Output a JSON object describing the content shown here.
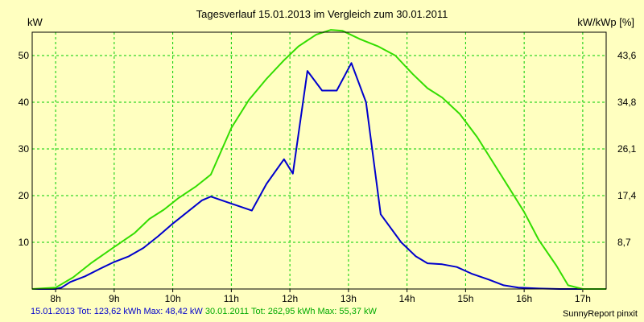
{
  "chart_data": {
    "type": "line",
    "title": "Tagesverlauf 15.01.2013 im Vergleich zum 30.01.2011",
    "ylabel": "kW",
    "y2label": "kW/kWp [%]",
    "x_ticks": [
      "8h",
      "9h",
      "10h",
      "11h",
      "12h",
      "13h",
      "14h",
      "15h",
      "16h",
      "17h"
    ],
    "y_ticks": [
      "10",
      "20",
      "30",
      "40",
      "50"
    ],
    "y2_ticks": [
      "8,7",
      "17,4",
      "26,1",
      "34,8",
      "43,6"
    ],
    "ylim": [
      0,
      55
    ],
    "xlim": [
      7.6,
      17.4
    ],
    "grid": true,
    "series": [
      {
        "name": "15.01.2013",
        "color": "#0000cc",
        "x": [
          7.6,
          8.0,
          8.1,
          8.25,
          8.5,
          8.75,
          9.0,
          9.25,
          9.5,
          9.75,
          10.0,
          10.25,
          10.5,
          10.65,
          11.0,
          11.35,
          11.6,
          11.9,
          12.05,
          12.3,
          12.55,
          12.8,
          13.05,
          13.3,
          13.55,
          13.9,
          14.15,
          14.35,
          14.6,
          14.85,
          15.1,
          15.4,
          15.65,
          15.9,
          16.25,
          16.6,
          17.0,
          17.4
        ],
        "values": [
          0,
          0,
          0.3,
          1.5,
          2.7,
          4.3,
          5.8,
          7.0,
          8.8,
          11.3,
          14.0,
          16.5,
          19.0,
          19.8,
          18.3,
          16.8,
          22.5,
          27.8,
          24.7,
          46.7,
          42.5,
          42.5,
          48.4,
          40.0,
          16.0,
          10.0,
          7.0,
          5.5,
          5.3,
          4.7,
          3.3,
          2.0,
          0.8,
          0.3,
          0.1,
          0,
          0,
          0
        ]
      },
      {
        "name": "30.01.2011",
        "color": "#33dd00",
        "x": [
          7.6,
          8.0,
          8.3,
          8.6,
          9.0,
          9.35,
          9.6,
          9.85,
          10.1,
          10.4,
          10.65,
          11.0,
          11.3,
          11.6,
          11.9,
          12.15,
          12.45,
          12.7,
          12.9,
          13.2,
          13.5,
          13.8,
          14.1,
          14.35,
          14.6,
          14.9,
          15.2,
          15.45,
          15.75,
          16.0,
          16.25,
          16.55,
          16.75,
          17.0,
          17.4
        ],
        "values": [
          0,
          0.3,
          2.5,
          5.5,
          9.0,
          12.0,
          15.0,
          17.0,
          19.5,
          22.0,
          24.5,
          34.5,
          40.5,
          45.0,
          49.0,
          52.0,
          54.5,
          55.5,
          55.3,
          53.5,
          52.0,
          50.0,
          46.0,
          43.0,
          41.0,
          37.5,
          32.5,
          27.5,
          21.5,
          16.5,
          10.5,
          5.0,
          0.8,
          0,
          0
        ]
      }
    ]
  },
  "footer": {
    "s1_label": "15.01.2013 Tot: 123,62 kWh Max: 48,42 kW",
    "s2_label": "30.01.2011 Tot: 262,95 kWh Max: 55,37 kW"
  },
  "credit": "SunnyReport pinxit",
  "colors": {
    "background": "#ffffc0",
    "grid": "#00cc00"
  }
}
